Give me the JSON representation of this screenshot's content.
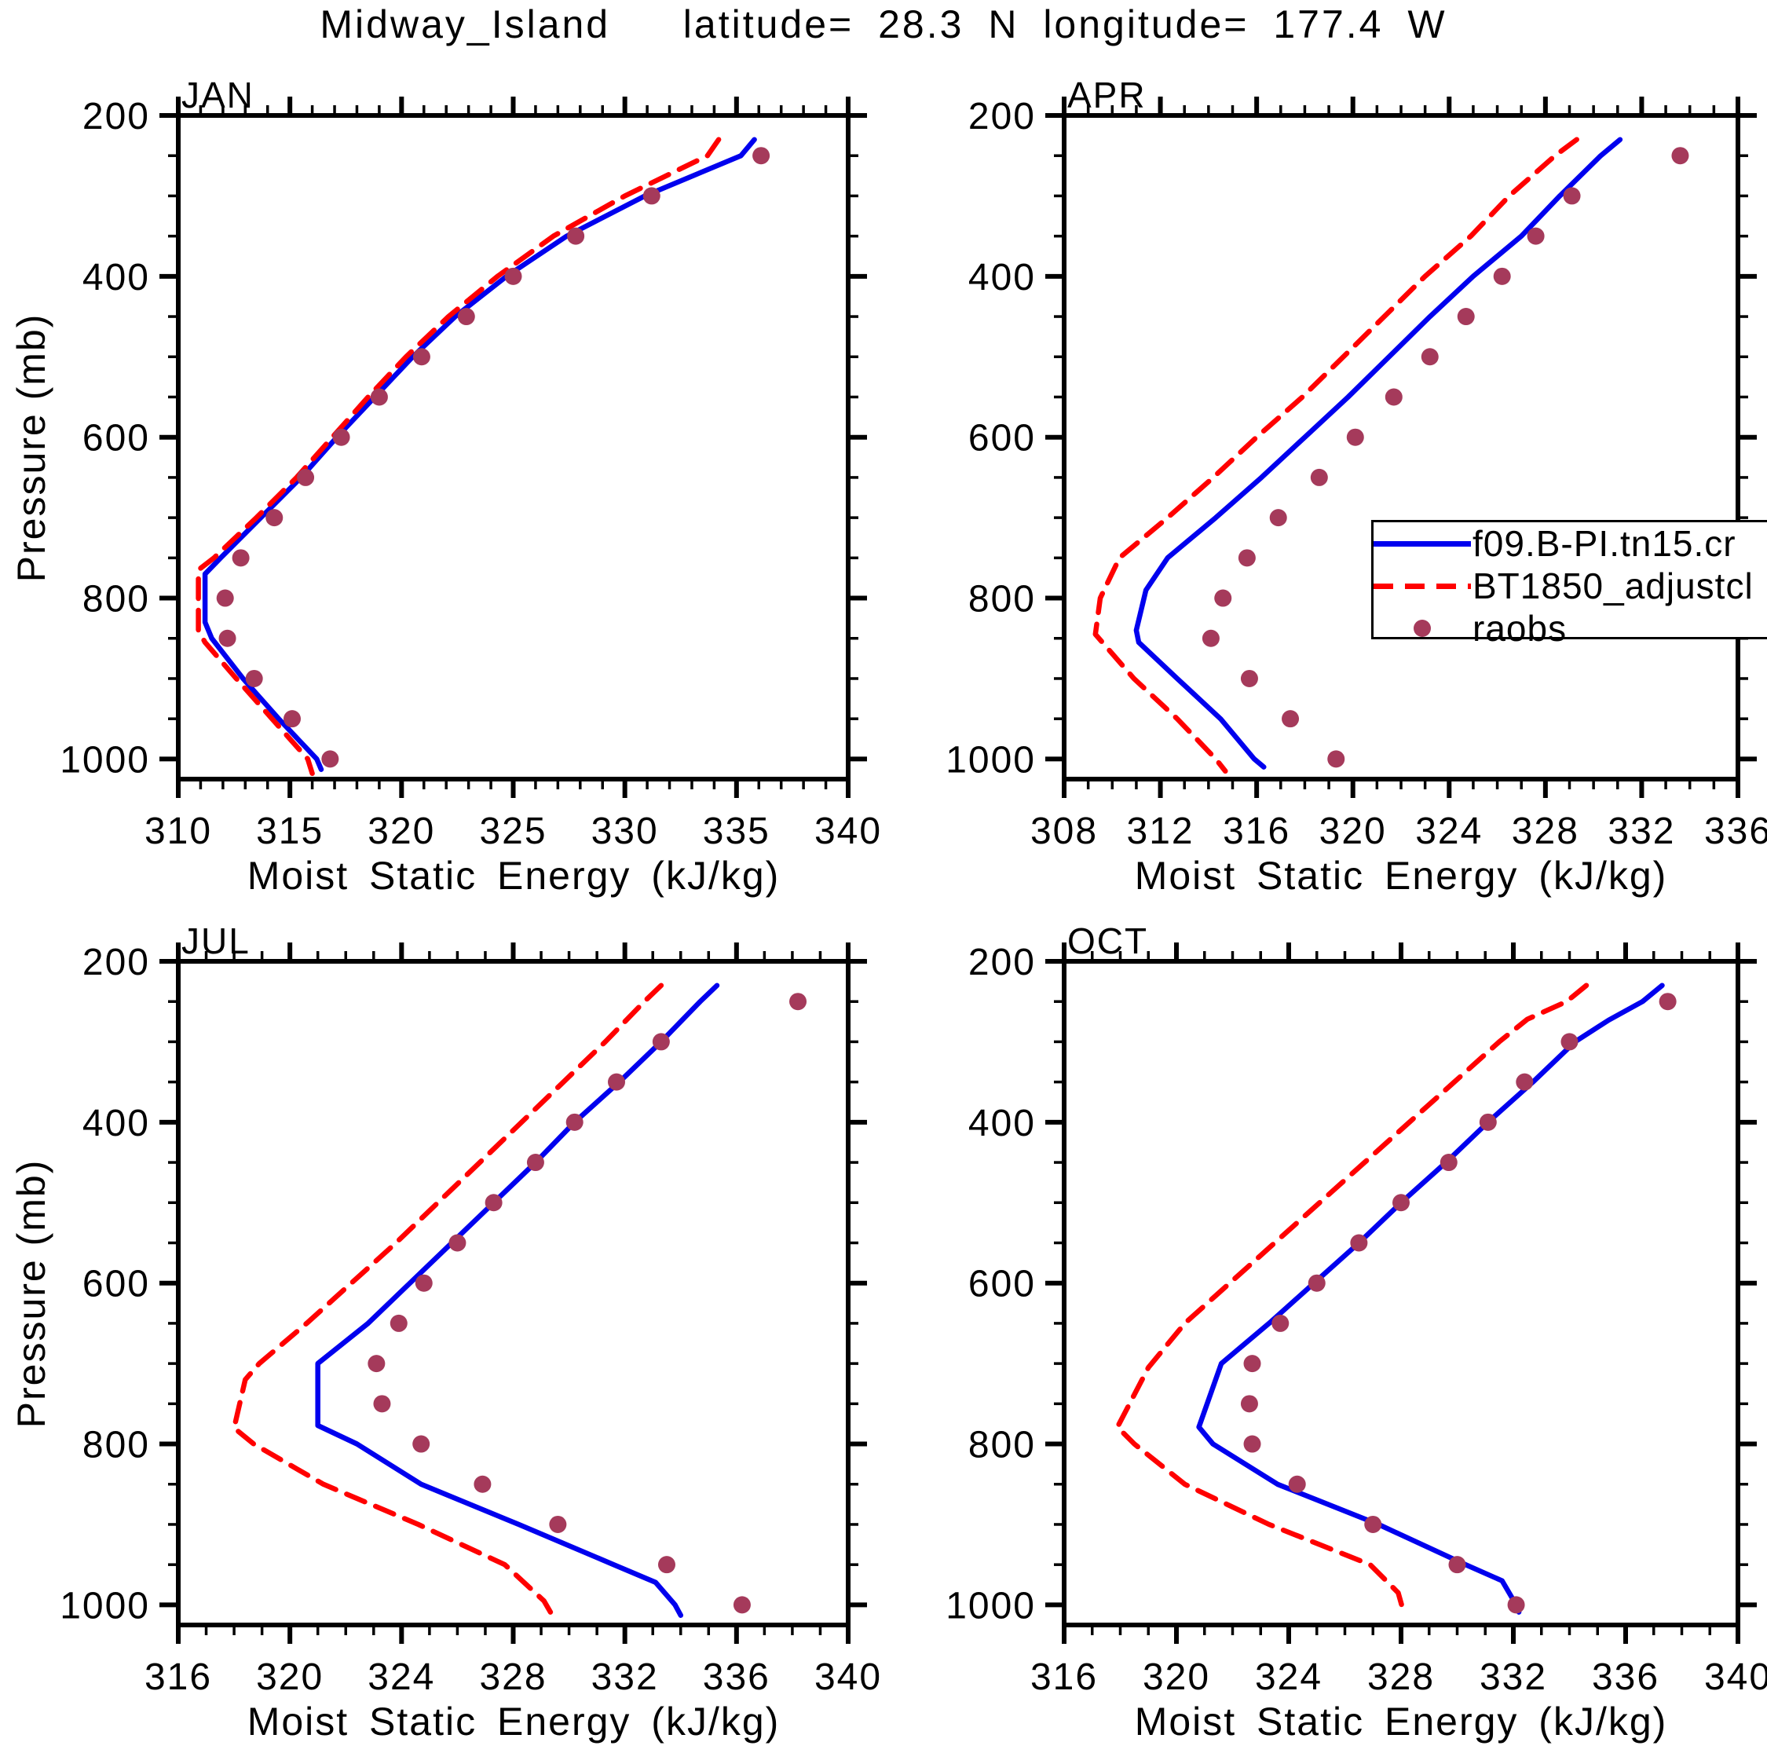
{
  "title": "Midway_Island   latitude= 28.3 N longitude= 177.4 W",
  "ylabel": "Pressure (mb)",
  "xlabel": "Moist Static Energy (kJ/kg)",
  "colors": {
    "model_blue": "#0000ee",
    "bt1850_red": "#ff0000",
    "raobs_maroon": "#a53a5b",
    "axis_black": "#000000",
    "background": "#ffffff"
  },
  "legend": {
    "entries": [
      {
        "label": "f09.B-PI.tn15.cr",
        "style": "blue-solid-line"
      },
      {
        "label": "BT1850_adjustcl",
        "style": "red-dashed-line"
      },
      {
        "label": "raobs",
        "style": "maroon-dot"
      }
    ]
  },
  "chart_data": [
    {
      "type": "line",
      "title": "JAN",
      "xlabel": "Moist Static Energy (kJ/kg)",
      "ylabel": "Pressure (mb)",
      "xlim": [
        310,
        340
      ],
      "xticks": [
        310,
        315,
        320,
        325,
        330,
        335,
        340
      ],
      "x_minor_step": 1,
      "ylim": [
        200,
        1025
      ],
      "yticks": [
        200,
        400,
        600,
        800,
        1000
      ],
      "y_minor_step": 50,
      "y_reversed": true,
      "grid": false,
      "legend_position": "in-panel-APR",
      "series": [
        {
          "name": "f09.B-PI.tn15.cr",
          "style": "solid",
          "color": "model_blue",
          "points": [
            [
              335.8,
              230
            ],
            [
              335.2,
              250
            ],
            [
              330.9,
              300
            ],
            [
              327.4,
              350
            ],
            [
              324.7,
              400
            ],
            [
              322.4,
              450
            ],
            [
              320.5,
              500
            ],
            [
              318.8,
              550
            ],
            [
              317.1,
              600
            ],
            [
              315.5,
              650
            ],
            [
              313.7,
              700
            ],
            [
              311.9,
              750
            ],
            [
              311.2,
              770
            ],
            [
              311.2,
              830
            ],
            [
              311.5,
              850
            ],
            [
              312.9,
              900
            ],
            [
              314.5,
              950
            ],
            [
              316.2,
              1000
            ],
            [
              316.4,
              1013
            ]
          ]
        },
        {
          "name": "BT1850_adjustcl",
          "style": "dashed",
          "color": "bt1850_red",
          "points": [
            [
              334.2,
              230
            ],
            [
              333.7,
              250
            ],
            [
              330.0,
              300
            ],
            [
              326.8,
              350
            ],
            [
              324.3,
              400
            ],
            [
              322.1,
              450
            ],
            [
              320.2,
              500
            ],
            [
              318.5,
              550
            ],
            [
              316.9,
              600
            ],
            [
              315.3,
              650
            ],
            [
              313.5,
              700
            ],
            [
              311.6,
              750
            ],
            [
              310.9,
              765
            ],
            [
              310.9,
              840
            ],
            [
              311.2,
              855
            ],
            [
              312.6,
              900
            ],
            [
              314.2,
              950
            ],
            [
              315.8,
              1000
            ],
            [
              316.0,
              1018
            ]
          ]
        },
        {
          "name": "raobs",
          "style": "dots",
          "color": "raobs_maroon",
          "points": [
            [
              336.1,
              250
            ],
            [
              331.2,
              300
            ],
            [
              327.8,
              350
            ],
            [
              325.0,
              400
            ],
            [
              322.9,
              450
            ],
            [
              320.9,
              500
            ],
            [
              319.0,
              550
            ],
            [
              317.3,
              600
            ],
            [
              315.7,
              650
            ],
            [
              314.3,
              700
            ],
            [
              312.8,
              750
            ],
            [
              312.1,
              800
            ],
            [
              312.2,
              850
            ],
            [
              313.4,
              900
            ],
            [
              315.1,
              950
            ],
            [
              316.8,
              1000
            ]
          ]
        }
      ]
    },
    {
      "type": "line",
      "title": "APR",
      "xlabel": "Moist Static Energy (kJ/kg)",
      "ylabel": "Pressure (mb)",
      "xlim": [
        308,
        336
      ],
      "xticks": [
        308,
        312,
        316,
        320,
        324,
        328,
        332,
        336
      ],
      "x_minor_step": 1,
      "ylim": [
        200,
        1025
      ],
      "yticks": [
        200,
        400,
        600,
        800,
        1000
      ],
      "y_minor_step": 50,
      "y_reversed": true,
      "grid": false,
      "series": [
        {
          "name": "f09.B-PI.tn15.cr",
          "style": "solid",
          "color": "model_blue",
          "points": [
            [
              331.1,
              230
            ],
            [
              330.3,
              250
            ],
            [
              328.6,
              300
            ],
            [
              327.0,
              350
            ],
            [
              325.0,
              400
            ],
            [
              323.2,
              450
            ],
            [
              321.5,
              500
            ],
            [
              319.8,
              550
            ],
            [
              318.0,
              600
            ],
            [
              316.2,
              650
            ],
            [
              314.3,
              700
            ],
            [
              312.3,
              750
            ],
            [
              311.4,
              790
            ],
            [
              311.0,
              840
            ],
            [
              311.1,
              855
            ],
            [
              312.7,
              900
            ],
            [
              314.5,
              950
            ],
            [
              315.9,
              1000
            ],
            [
              316.3,
              1010
            ]
          ]
        },
        {
          "name": "BT1850_adjustcl",
          "style": "dashed",
          "color": "bt1850_red",
          "points": [
            [
              329.3,
              230
            ],
            [
              328.4,
              250
            ],
            [
              326.5,
              300
            ],
            [
              324.9,
              350
            ],
            [
              323.0,
              400
            ],
            [
              321.3,
              450
            ],
            [
              319.6,
              500
            ],
            [
              317.9,
              550
            ],
            [
              316.0,
              600
            ],
            [
              314.2,
              650
            ],
            [
              312.3,
              700
            ],
            [
              310.3,
              750
            ],
            [
              309.5,
              800
            ],
            [
              309.3,
              845
            ],
            [
              310.9,
              900
            ],
            [
              312.7,
              950
            ],
            [
              314.3,
              1000
            ],
            [
              314.7,
              1015
            ]
          ]
        },
        {
          "name": "raobs",
          "style": "dots",
          "color": "raobs_maroon",
          "points": [
            [
              333.6,
              250
            ],
            [
              329.1,
              300
            ],
            [
              327.6,
              350
            ],
            [
              326.2,
              400
            ],
            [
              324.7,
              450
            ],
            [
              323.2,
              500
            ],
            [
              321.7,
              550
            ],
            [
              320.1,
              600
            ],
            [
              318.6,
              650
            ],
            [
              316.9,
              700
            ],
            [
              315.6,
              750
            ],
            [
              314.6,
              800
            ],
            [
              314.1,
              850
            ],
            [
              315.7,
              900
            ],
            [
              317.4,
              950
            ],
            [
              319.3,
              1000
            ]
          ]
        }
      ]
    },
    {
      "type": "line",
      "title": "JUL",
      "xlabel": "Moist Static Energy (kJ/kg)",
      "ylabel": "Pressure (mb)",
      "xlim": [
        316,
        340
      ],
      "xticks": [
        316,
        320,
        324,
        328,
        332,
        336,
        340
      ],
      "x_minor_step": 1,
      "ylim": [
        200,
        1025
      ],
      "yticks": [
        200,
        400,
        600,
        800,
        1000
      ],
      "y_minor_step": 50,
      "y_reversed": true,
      "grid": false,
      "series": [
        {
          "name": "f09.B-PI.tn15.cr",
          "style": "solid",
          "color": "model_blue",
          "points": [
            [
              335.3,
              230
            ],
            [
              334.7,
              250
            ],
            [
              333.3,
              300
            ],
            [
              331.8,
              350
            ],
            [
              330.2,
              400
            ],
            [
              328.8,
              450
            ],
            [
              327.3,
              500
            ],
            [
              325.8,
              550
            ],
            [
              324.3,
              600
            ],
            [
              322.8,
              650
            ],
            [
              321.0,
              700
            ],
            [
              321.0,
              777
            ],
            [
              322.4,
              800
            ],
            [
              324.7,
              850
            ],
            [
              328.2,
              900
            ],
            [
              331.6,
              950
            ],
            [
              333.1,
              972
            ],
            [
              333.8,
              1000
            ],
            [
              334.0,
              1013
            ]
          ]
        },
        {
          "name": "BT1850_adjustcl",
          "style": "dashed",
          "color": "bt1850_red",
          "points": [
            [
              333.3,
              230
            ],
            [
              332.7,
              250
            ],
            [
              331.3,
              300
            ],
            [
              329.8,
              350
            ],
            [
              328.3,
              400
            ],
            [
              326.8,
              450
            ],
            [
              325.3,
              500
            ],
            [
              323.8,
              550
            ],
            [
              322.2,
              600
            ],
            [
              320.6,
              650
            ],
            [
              318.9,
              700
            ],
            [
              318.4,
              720
            ],
            [
              318.0,
              780
            ],
            [
              318.7,
              800
            ],
            [
              321.2,
              850
            ],
            [
              324.6,
              900
            ],
            [
              327.7,
              950
            ],
            [
              329.1,
              995
            ],
            [
              329.4,
              1013
            ]
          ]
        },
        {
          "name": "raobs",
          "style": "dots",
          "color": "raobs_maroon",
          "points": [
            [
              338.2,
              250
            ],
            [
              333.3,
              300
            ],
            [
              331.7,
              350
            ],
            [
              330.2,
              400
            ],
            [
              328.8,
              450
            ],
            [
              327.3,
              500
            ],
            [
              326.0,
              550
            ],
            [
              324.8,
              600
            ],
            [
              323.9,
              650
            ],
            [
              323.1,
              700
            ],
            [
              323.3,
              750
            ],
            [
              324.7,
              800
            ],
            [
              326.9,
              850
            ],
            [
              329.6,
              900
            ],
            [
              333.5,
              950
            ],
            [
              336.2,
              1000
            ]
          ]
        }
      ]
    },
    {
      "type": "line",
      "title": "OCT",
      "xlabel": "Moist Static Energy (kJ/kg)",
      "ylabel": "Pressure (mb)",
      "xlim": [
        316,
        340
      ],
      "xticks": [
        316,
        320,
        324,
        328,
        332,
        336,
        340
      ],
      "x_minor_step": 1,
      "ylim": [
        200,
        1025
      ],
      "yticks": [
        200,
        400,
        600,
        800,
        1000
      ],
      "y_minor_step": 50,
      "y_reversed": true,
      "grid": false,
      "series": [
        {
          "name": "f09.B-PI.tn15.cr",
          "style": "solid",
          "color": "model_blue",
          "points": [
            [
              337.3,
              230
            ],
            [
              336.6,
              250
            ],
            [
              335.4,
              273
            ],
            [
              334.2,
              300
            ],
            [
              332.7,
              350
            ],
            [
              331.1,
              400
            ],
            [
              329.6,
              450
            ],
            [
              328.0,
              500
            ],
            [
              326.5,
              550
            ],
            [
              324.9,
              600
            ],
            [
              323.3,
              650
            ],
            [
              321.6,
              700
            ],
            [
              320.8,
              779
            ],
            [
              321.3,
              800
            ],
            [
              323.6,
              850
            ],
            [
              327.2,
              900
            ],
            [
              330.3,
              950
            ],
            [
              331.6,
              970
            ],
            [
              332.1,
              1000
            ],
            [
              332.2,
              1009
            ]
          ]
        },
        {
          "name": "BT1850_adjustcl",
          "style": "dashed",
          "color": "bt1850_red",
          "points": [
            [
              334.6,
              230
            ],
            [
              333.9,
              250
            ],
            [
              332.5,
              272
            ],
            [
              331.5,
              300
            ],
            [
              329.9,
              350
            ],
            [
              328.3,
              400
            ],
            [
              326.7,
              450
            ],
            [
              325.1,
              500
            ],
            [
              323.5,
              550
            ],
            [
              321.9,
              600
            ],
            [
              320.3,
              650
            ],
            [
              319.0,
              705
            ],
            [
              317.9,
              779
            ],
            [
              318.5,
              800
            ],
            [
              320.3,
              850
            ],
            [
              323.3,
              900
            ],
            [
              326.9,
              950
            ],
            [
              327.9,
              985
            ],
            [
              328.1,
              1010
            ]
          ]
        },
        {
          "name": "raobs",
          "style": "dots",
          "color": "raobs_maroon",
          "points": [
            [
              337.5,
              250
            ],
            [
              334.0,
              300
            ],
            [
              332.4,
              350
            ],
            [
              331.1,
              400
            ],
            [
              329.7,
              450
            ],
            [
              328.0,
              500
            ],
            [
              326.5,
              550
            ],
            [
              325.0,
              600
            ],
            [
              323.7,
              650
            ],
            [
              322.7,
              700
            ],
            [
              322.6,
              750
            ],
            [
              322.7,
              800
            ],
            [
              324.3,
              850
            ],
            [
              327.0,
              900
            ],
            [
              330.0,
              950
            ],
            [
              332.1,
              1000
            ]
          ]
        }
      ]
    }
  ]
}
